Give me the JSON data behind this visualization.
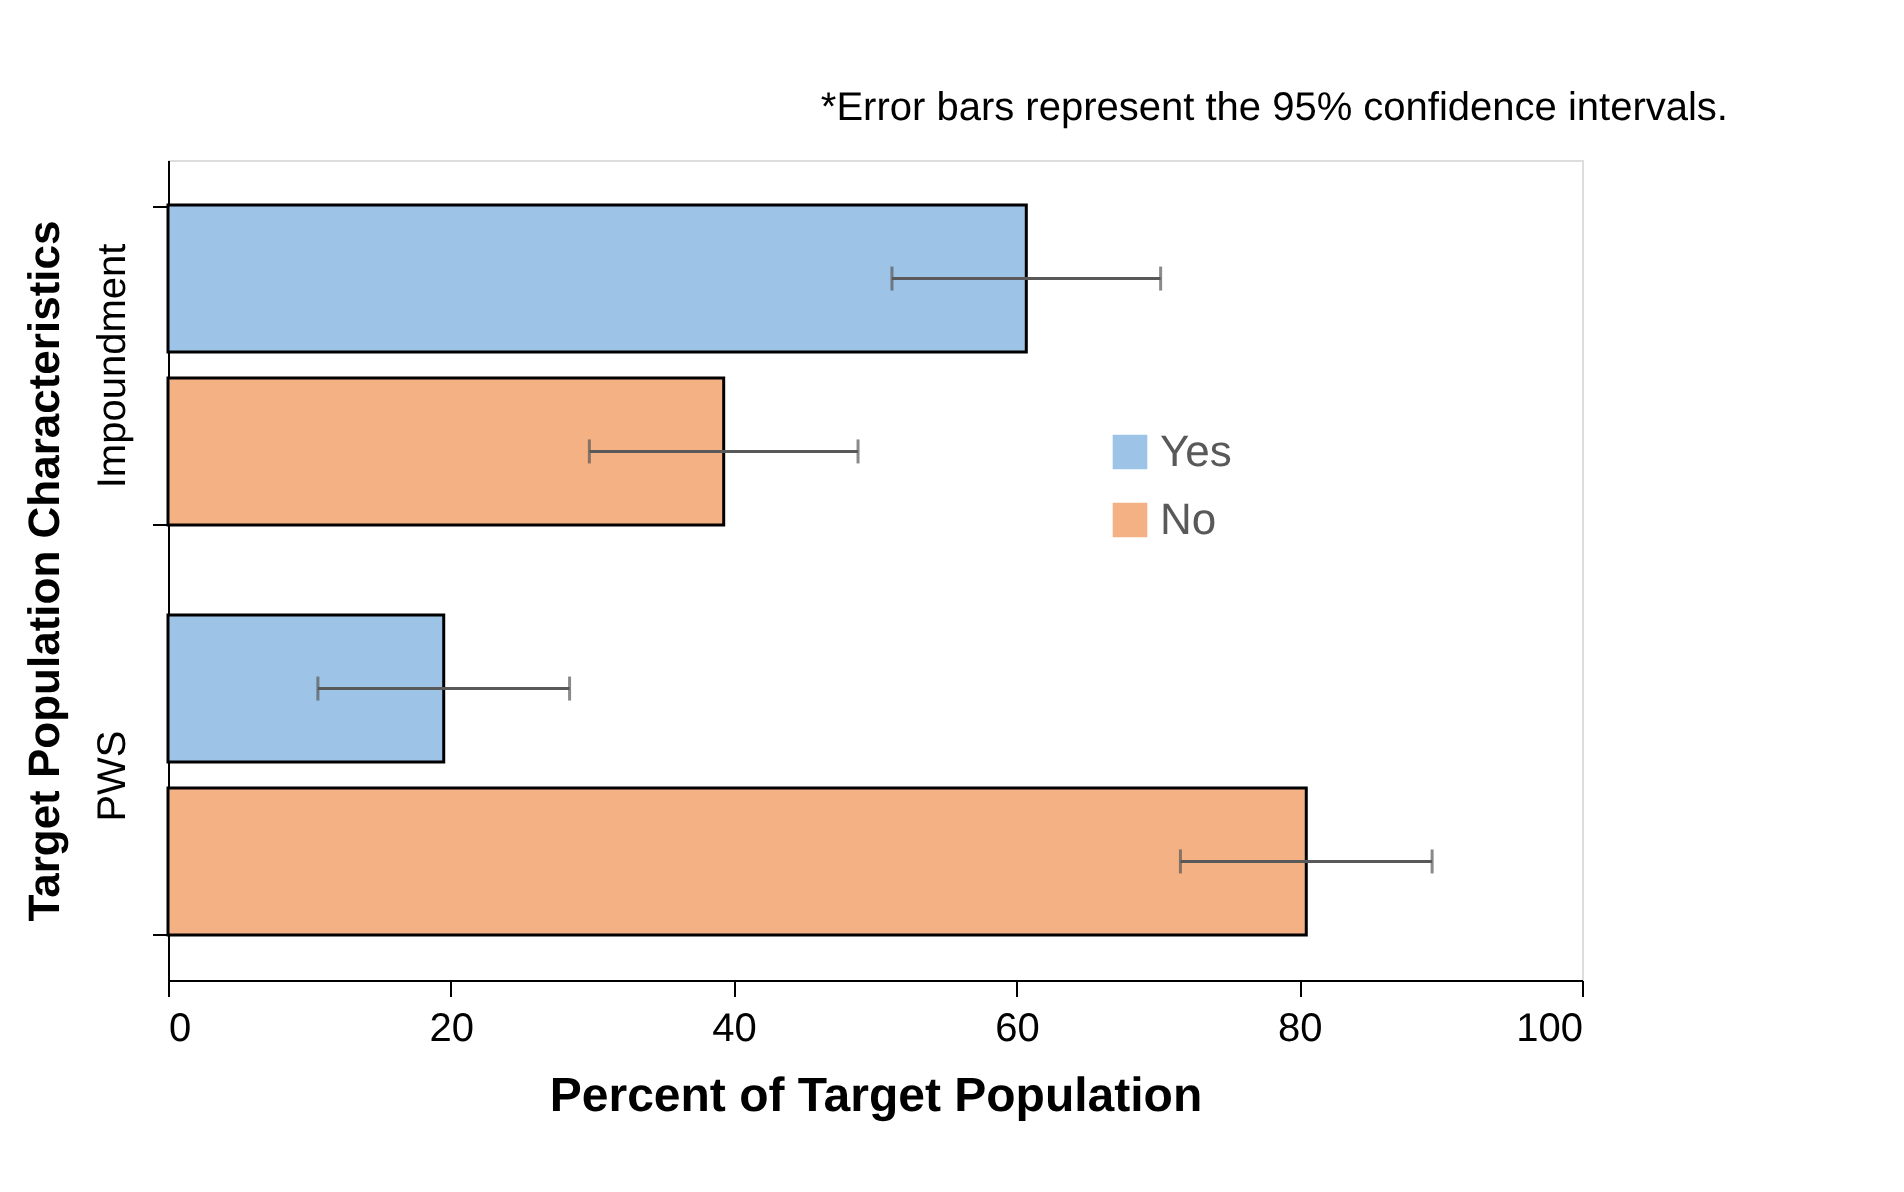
{
  "chart_data": {
    "type": "bar",
    "orientation": "horizontal",
    "xlabel": "Percent of Target Population",
    "ylabel": "Target Population Characteristics",
    "categories": [
      "Impoundment",
      "PWS"
    ],
    "series": [
      {
        "name": "Yes",
        "color": "#9dc3e6",
        "values": [
          60.7,
          19.5
        ],
        "errors": [
          9.5,
          8.9
        ]
      },
      {
        "name": "No",
        "color": "#f4b183",
        "values": [
          39.3,
          80.5
        ],
        "errors": [
          9.5,
          8.9
        ]
      }
    ],
    "xlim": [
      0,
      100
    ],
    "xticks": [
      0,
      20,
      40,
      60,
      80,
      100
    ],
    "grid": false,
    "legend": "right",
    "annotations": [
      "*Error bars represent the 95% confidence intervals."
    ]
  }
}
